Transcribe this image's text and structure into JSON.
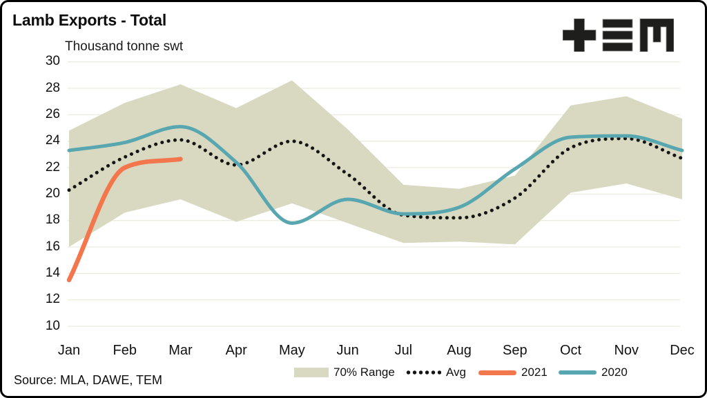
{
  "header": {
    "title": "Lamb Exports - Total",
    "subtitle": "Thousand tonne swt"
  },
  "logo": {
    "name": "TEM",
    "color": "#1e1e1c"
  },
  "source": {
    "label": "Source: MLA, DAWE, TEM"
  },
  "colors": {
    "band": "#d8d9c0",
    "gridline": "#edecdf",
    "avg_dots": "#151515",
    "line_2021": "#f3764d",
    "line_2020": "#58a6b0",
    "text": "#111111"
  },
  "chart_data": {
    "type": "line",
    "title": "Lamb Exports - Total",
    "ylabel": "Thousand tonne swt",
    "xlabel": "",
    "categories": [
      "Jan",
      "Feb",
      "Mar",
      "Apr",
      "May",
      "Jun",
      "Jul",
      "Aug",
      "Sep",
      "Oct",
      "Nov",
      "Dec"
    ],
    "ylim": [
      10,
      30
    ],
    "ytick_step": 2,
    "grid": true,
    "legend_position": "bottom",
    "series": [
      {
        "name": "70% Range",
        "type": "band",
        "color": "#d8d9c0",
        "upper": [
          24.8,
          26.9,
          28.3,
          26.5,
          28.6,
          24.9,
          20.7,
          20.4,
          21.4,
          26.7,
          27.4,
          25.7
        ],
        "lower": [
          16.0,
          18.6,
          19.6,
          17.9,
          19.3,
          17.8,
          16.3,
          16.4,
          16.2,
          20.1,
          20.8,
          19.6
        ]
      },
      {
        "name": "Avg",
        "type": "line",
        "style": "dotted",
        "color": "#151515",
        "values": [
          20.3,
          22.8,
          24.1,
          22.2,
          24.0,
          21.5,
          18.4,
          18.2,
          19.7,
          23.5,
          24.2,
          22.7
        ]
      },
      {
        "name": "2021",
        "type": "line",
        "style": "solid",
        "color": "#f3764d",
        "values": [
          13.5,
          22.0,
          22.65
        ]
      },
      {
        "name": "2020",
        "type": "line",
        "style": "solid",
        "color": "#58a6b0",
        "values": [
          23.3,
          23.9,
          25.1,
          22.4,
          17.8,
          19.6,
          18.5,
          19.0,
          21.9,
          24.3,
          24.4,
          23.3
        ]
      }
    ]
  }
}
